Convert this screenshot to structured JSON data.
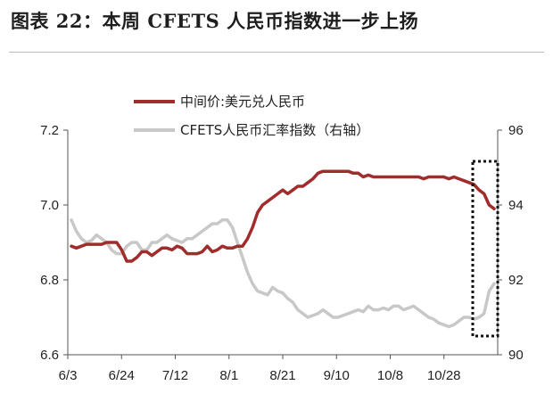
{
  "title": "图表 22：本周 CFETS 人民币指数进一步上扬",
  "chart_data": {
    "type": "line",
    "x_ticks": [
      "6/3",
      "6/24",
      "7/12",
      "8/1",
      "8/21",
      "9/10",
      "10/8",
      "10/28"
    ],
    "y_left": {
      "min": 6.6,
      "max": 7.2,
      "ticks": [
        "6.6",
        "6.8",
        "7.0",
        "7.2"
      ]
    },
    "y_right": {
      "min": 90,
      "max": 96,
      "ticks": [
        "90",
        "92",
        "94",
        "96"
      ]
    },
    "legend_position": "top-center",
    "grid": false,
    "highlight_box": "dotted rectangle around last week",
    "series": [
      {
        "name": "中间价:美元兑人民币",
        "axis": "left",
        "color": "#a02c2c",
        "values": [
          6.89,
          6.885,
          6.89,
          6.895,
          6.895,
          6.895,
          6.895,
          6.9,
          6.9,
          6.9,
          6.88,
          6.85,
          6.85,
          6.86,
          6.875,
          6.875,
          6.865,
          6.875,
          6.885,
          6.885,
          6.88,
          6.89,
          6.885,
          6.87,
          6.87,
          6.87,
          6.875,
          6.89,
          6.875,
          6.88,
          6.89,
          6.885,
          6.885,
          6.89,
          6.89,
          6.91,
          6.94,
          6.98,
          7.0,
          7.01,
          7.02,
          7.03,
          7.04,
          7.03,
          7.04,
          7.05,
          7.05,
          7.06,
          7.07,
          7.085,
          7.09,
          7.09,
          7.09,
          7.09,
          7.09,
          7.09,
          7.085,
          7.085,
          7.075,
          7.08,
          7.075,
          7.075,
          7.075,
          7.075,
          7.075,
          7.075,
          7.075,
          7.075,
          7.075,
          7.075,
          7.07,
          7.075,
          7.075,
          7.075,
          7.075,
          7.07,
          7.075,
          7.07,
          7.065,
          7.06,
          7.055,
          7.04,
          7.03,
          7.0,
          6.99
        ]
      },
      {
        "name": "CFETS人民币汇率指数（右轴）",
        "axis": "right",
        "color": "#c8c8c8",
        "values": [
          93.6,
          93.3,
          93.1,
          93.0,
          93.05,
          93.2,
          93.1,
          93.0,
          92.8,
          92.7,
          92.7,
          92.9,
          93.0,
          93.0,
          92.8,
          92.8,
          93.0,
          93.0,
          93.1,
          93.2,
          93.1,
          93.05,
          93.0,
          93.1,
          93.1,
          93.2,
          93.3,
          93.4,
          93.5,
          93.5,
          93.6,
          93.6,
          93.4,
          93.0,
          92.6,
          92.2,
          91.9,
          91.7,
          91.65,
          91.6,
          91.8,
          91.7,
          91.65,
          91.5,
          91.4,
          91.2,
          91.1,
          91.0,
          91.05,
          91.1,
          91.2,
          91.1,
          91.0,
          91.0,
          91.05,
          91.1,
          91.15,
          91.2,
          91.15,
          91.3,
          91.2,
          91.2,
          91.25,
          91.2,
          91.3,
          91.3,
          91.2,
          91.25,
          91.3,
          91.2,
          91.1,
          91.0,
          90.95,
          90.85,
          90.8,
          90.75,
          90.8,
          90.9,
          91.0,
          91.0,
          90.95,
          91.0,
          91.1,
          91.7,
          91.9
        ]
      }
    ]
  }
}
